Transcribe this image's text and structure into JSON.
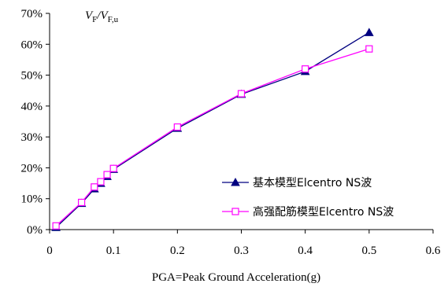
{
  "chart_data": {
    "type": "line",
    "xlabel": "PGA=Peak Ground Acceleration(g)",
    "ylabel": "",
    "xlim": [
      0,
      0.6
    ],
    "ylim": [
      0,
      70
    ],
    "x_ticks": [
      "0",
      "0.1",
      "0.2",
      "0.3",
      "0.4",
      "0.5",
      "0.6"
    ],
    "y_ticks": [
      "0%",
      "10%",
      "20%",
      "30%",
      "40%",
      "50%",
      "60%",
      "70%"
    ],
    "grid": false,
    "legend_position": "bottom-right",
    "annotation": {
      "v1": "V",
      "s1": "F",
      "slash": "/",
      "v2": "V",
      "s2": "F,u"
    },
    "series": [
      {
        "name": "基本模型Elcentro NS波",
        "color": "#000080",
        "marker": "filled-triangle",
        "x": [
          0.01,
          0.05,
          0.07,
          0.08,
          0.09,
          0.1,
          0.2,
          0.3,
          0.4,
          0.5
        ],
        "y": [
          0.7,
          8.5,
          13.2,
          15.0,
          17.2,
          19.5,
          32.8,
          43.8,
          51.2,
          63.8
        ]
      },
      {
        "name": "高强配筋模型Elcentro NS波",
        "color": "#ff00ff",
        "marker": "open-square",
        "x": [
          0.01,
          0.05,
          0.07,
          0.08,
          0.09,
          0.1,
          0.2,
          0.3,
          0.4,
          0.5
        ],
        "y": [
          1.2,
          8.8,
          13.8,
          15.5,
          17.8,
          19.8,
          33.2,
          44.0,
          52.0,
          58.5
        ]
      }
    ]
  }
}
